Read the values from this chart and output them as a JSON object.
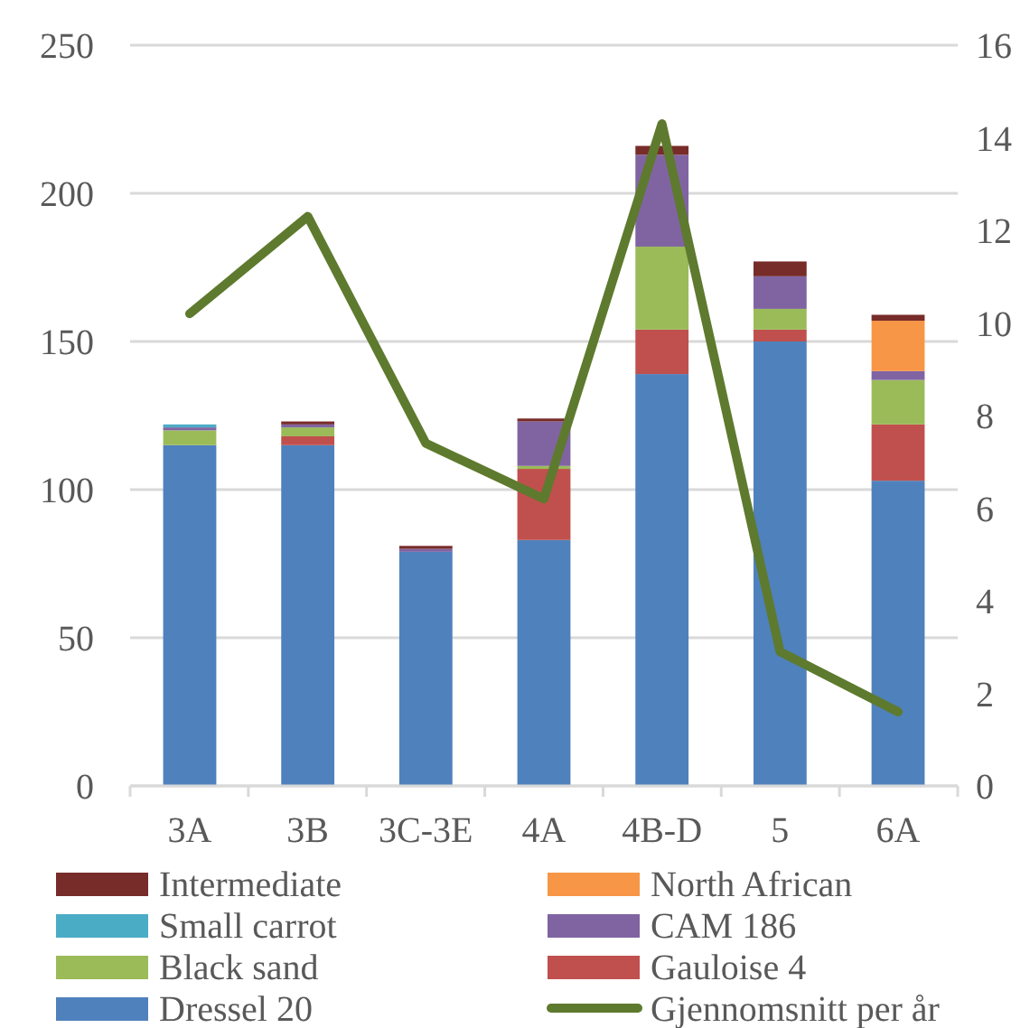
{
  "chart_data": {
    "type": "bar",
    "stacked": true,
    "categories": [
      "3A",
      "3B",
      "3C-3E",
      "4A",
      "4B-D",
      "5",
      "6A"
    ],
    "series": [
      {
        "name": "Dressel 20",
        "color": "#4f81bd",
        "values": [
          115,
          115,
          79,
          83,
          139,
          150,
          103
        ]
      },
      {
        "name": "Gauloise 4",
        "color": "#c0504d",
        "values": [
          0,
          3,
          0,
          24,
          15,
          4,
          19
        ]
      },
      {
        "name": "Black sand",
        "color": "#9bbb59",
        "values": [
          5,
          3,
          0,
          1,
          28,
          7,
          15
        ]
      },
      {
        "name": "CAM 186",
        "color": "#8064a2",
        "values": [
          1,
          1,
          1,
          15,
          31,
          11,
          3
        ]
      },
      {
        "name": "Small carrot",
        "color": "#4bacc6",
        "values": [
          1,
          0,
          0,
          0,
          0,
          0,
          0
        ]
      },
      {
        "name": "North African",
        "color": "#f79646",
        "values": [
          0,
          0,
          0,
          0,
          0,
          0,
          17
        ]
      },
      {
        "name": "Intermediate",
        "color": "#772c2a",
        "values": [
          0,
          1,
          1,
          1,
          3,
          5,
          2
        ]
      },
      {
        "name": "Gjennomsnitt per år",
        "type": "line",
        "axis": "y2",
        "color": "#5e7a2e",
        "values": [
          10.2,
          12.3,
          7.4,
          6.2,
          14.3,
          2.9,
          1.6
        ]
      }
    ],
    "ylim": [
      0,
      250
    ],
    "yticks": [
      0,
      50,
      100,
      150,
      200,
      250
    ],
    "y2lim": [
      0,
      16
    ],
    "y2ticks": [
      0,
      2,
      4,
      6,
      8,
      10,
      12,
      14,
      16
    ],
    "grid": "y",
    "legend": "bottom",
    "marker": "none",
    "line_style": "solid"
  }
}
